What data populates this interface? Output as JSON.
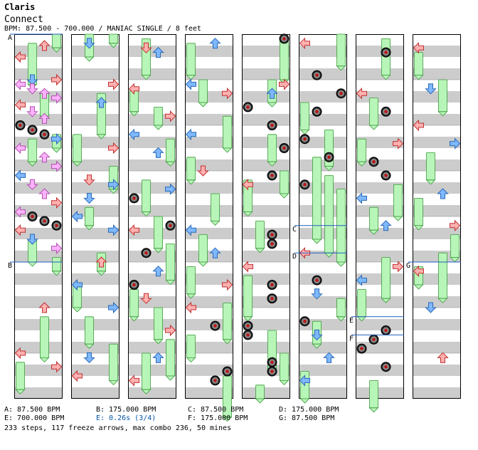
{
  "header": {
    "title": "Claris",
    "artist": "Connect",
    "meta": "BPM: 87.500 - 700.000 / MANIAC SINGLE / 8 feet"
  },
  "colors": {
    "band_gray": "#cccccc",
    "band_white": "#ffffff",
    "left_arrow": "#ffb0b0",
    "right_arrow": "#ffb0b0",
    "down_arrow": "#7fb8ff",
    "up_arrow": "#7fb8ff",
    "quarter_arrow": "#ffb0b0",
    "eighth_arrow": "#7fb8ff",
    "sixteenth_arrow": "#ffb3ff",
    "freeze": "#b8f5b8",
    "mine": "#c01010",
    "stop_text": "#0055aa",
    "bpm_line": "#1f5fbf"
  },
  "chart_data": {
    "type": "step-chart",
    "mode": "MANIAC SINGLE",
    "feet": 8,
    "bpm_range": [
      87.5,
      700.0
    ],
    "lanes": [
      "left",
      "down",
      "up",
      "right"
    ],
    "columns": 8,
    "measures_per_column": 8,
    "markers": [
      {
        "label": "A",
        "measure": 0.0
      },
      {
        "label": "B",
        "measure": 5.0
      },
      {
        "label": "C",
        "measure": 44.2
      },
      {
        "label": "D",
        "measure": 44.8
      },
      {
        "label": "E",
        "measure": 54.2
      },
      {
        "label": "F",
        "measure": 54.6
      },
      {
        "label": "G",
        "measure": 61.0
      }
    ],
    "notes": [
      {
        "m": 0.25,
        "lane": "up",
        "t": "q"
      },
      {
        "m": 0.5,
        "lane": "left",
        "t": "q"
      },
      {
        "m": 1.0,
        "lane": "down",
        "t": "e"
      },
      {
        "m": 1.0,
        "lane": "right",
        "t": "q"
      },
      {
        "m": 1.1,
        "lane": "left",
        "t": "s"
      },
      {
        "m": 1.2,
        "lane": "down",
        "t": "s"
      },
      {
        "m": 1.3,
        "lane": "up",
        "t": "s"
      },
      {
        "m": 1.4,
        "lane": "right",
        "t": "s"
      },
      {
        "m": 1.55,
        "lane": "left",
        "t": "q"
      },
      {
        "m": 1.7,
        "lane": "down",
        "t": "s"
      },
      {
        "m": 1.85,
        "lane": "up",
        "t": "s"
      },
      {
        "m": 2.0,
        "lane": "left",
        "t": "mine"
      },
      {
        "m": 2.1,
        "lane": "down",
        "t": "mine"
      },
      {
        "m": 2.2,
        "lane": "up",
        "t": "mine"
      },
      {
        "m": 2.3,
        "lane": "right",
        "t": "e"
      },
      {
        "m": 2.5,
        "lane": "left",
        "t": "s"
      },
      {
        "m": 2.7,
        "lane": "up",
        "t": "s"
      },
      {
        "m": 2.9,
        "lane": "right",
        "t": "s"
      },
      {
        "m": 3.1,
        "lane": "left",
        "t": "e"
      },
      {
        "m": 3.3,
        "lane": "down",
        "t": "s"
      },
      {
        "m": 3.5,
        "lane": "up",
        "t": "s"
      },
      {
        "m": 3.7,
        "lane": "right",
        "t": "q"
      },
      {
        "m": 3.9,
        "lane": "left",
        "t": "s"
      },
      {
        "m": 4.0,
        "lane": "down",
        "t": "mine"
      },
      {
        "m": 4.1,
        "lane": "up",
        "t": "mine"
      },
      {
        "m": 4.2,
        "lane": "right",
        "t": "mine"
      },
      {
        "m": 4.3,
        "lane": "left",
        "t": "q"
      },
      {
        "m": 4.5,
        "lane": "down",
        "t": "e"
      },
      {
        "m": 4.7,
        "lane": "right",
        "t": "s"
      },
      {
        "m": 6.0,
        "lane": "up",
        "t": "q"
      },
      {
        "m": 7.0,
        "lane": "left",
        "t": "q"
      },
      {
        "m": 7.3,
        "lane": "right",
        "t": "q"
      },
      {
        "m": 8.2,
        "lane": "down",
        "t": "e"
      },
      {
        "m": 9.1,
        "lane": "right",
        "t": "q"
      },
      {
        "m": 9.5,
        "lane": "up",
        "t": "e"
      },
      {
        "m": 10.5,
        "lane": "right",
        "t": "q"
      },
      {
        "m": 11.2,
        "lane": "down",
        "t": "q"
      },
      {
        "m": 11.3,
        "lane": "right",
        "t": "e"
      },
      {
        "m": 11.6,
        "lane": "down",
        "t": "e"
      },
      {
        "m": 12.0,
        "lane": "left",
        "t": "e"
      },
      {
        "m": 12.3,
        "lane": "right",
        "t": "e"
      },
      {
        "m": 13.0,
        "lane": "up",
        "t": "q"
      },
      {
        "m": 13.5,
        "lane": "left",
        "t": "e"
      },
      {
        "m": 14.0,
        "lane": "right",
        "t": "e"
      },
      {
        "m": 15.1,
        "lane": "down",
        "t": "e"
      },
      {
        "m": 15.5,
        "lane": "left",
        "t": "q"
      },
      {
        "m": 16.3,
        "lane": "down",
        "t": "q"
      },
      {
        "m": 16.4,
        "lane": "up",
        "t": "e"
      },
      {
        "m": 17.2,
        "lane": "left",
        "t": "q"
      },
      {
        "m": 17.8,
        "lane": "right",
        "t": "q"
      },
      {
        "m": 18.2,
        "lane": "left",
        "t": "e"
      },
      {
        "m": 18.6,
        "lane": "up",
        "t": "e"
      },
      {
        "m": 19.4,
        "lane": "right",
        "t": "e"
      },
      {
        "m": 19.6,
        "lane": "left",
        "t": "mine"
      },
      {
        "m": 20.2,
        "lane": "right",
        "t": "mine"
      },
      {
        "m": 20.3,
        "lane": "left",
        "t": "q"
      },
      {
        "m": 20.8,
        "lane": "down",
        "t": "mine"
      },
      {
        "m": 21.2,
        "lane": "up",
        "t": "e"
      },
      {
        "m": 21.5,
        "lane": "left",
        "t": "mine"
      },
      {
        "m": 21.8,
        "lane": "down",
        "t": "q"
      },
      {
        "m": 22.5,
        "lane": "right",
        "t": "q"
      },
      {
        "m": 23.1,
        "lane": "up",
        "t": "e"
      },
      {
        "m": 23.6,
        "lane": "left",
        "t": "q"
      },
      {
        "m": 24.2,
        "lane": "up",
        "t": "e"
      },
      {
        "m": 25.1,
        "lane": "left",
        "t": "e"
      },
      {
        "m": 25.3,
        "lane": "right",
        "t": "q"
      },
      {
        "m": 26.2,
        "lane": "left",
        "t": "e"
      },
      {
        "m": 27.0,
        "lane": "down",
        "t": "q"
      },
      {
        "m": 28.3,
        "lane": "left",
        "t": "e"
      },
      {
        "m": 28.8,
        "lane": "up",
        "t": "e"
      },
      {
        "m": 29.5,
        "lane": "right",
        "t": "q"
      },
      {
        "m": 30.0,
        "lane": "left",
        "t": "q"
      },
      {
        "m": 30.4,
        "lane": "up",
        "t": "mine"
      },
      {
        "m": 31.4,
        "lane": "right",
        "t": "mine"
      },
      {
        "m": 31.6,
        "lane": "up",
        "t": "mine"
      },
      {
        "m": 32.1,
        "lane": "right",
        "t": "mine"
      },
      {
        "m": 33.1,
        "lane": "right",
        "t": "q"
      },
      {
        "m": 33.3,
        "lane": "up",
        "t": "e"
      },
      {
        "m": 33.6,
        "lane": "left",
        "t": "mine"
      },
      {
        "m": 34.0,
        "lane": "up",
        "t": "mine"
      },
      {
        "m": 34.5,
        "lane": "right",
        "t": "mine"
      },
      {
        "m": 35.1,
        "lane": "up",
        "t": "mine"
      },
      {
        "m": 35.3,
        "lane": "left",
        "t": "q"
      },
      {
        "m": 36.4,
        "lane": "up",
        "t": "mine"
      },
      {
        "m": 36.6,
        "lane": "up",
        "t": "mine"
      },
      {
        "m": 37.1,
        "lane": "left",
        "t": "q"
      },
      {
        "m": 37.5,
        "lane": "up",
        "t": "mine"
      },
      {
        "m": 37.8,
        "lane": "up",
        "t": "mine"
      },
      {
        "m": 38.4,
        "lane": "left",
        "t": "mine"
      },
      {
        "m": 38.6,
        "lane": "left",
        "t": "mine"
      },
      {
        "m": 39.2,
        "lane": "up",
        "t": "mine"
      },
      {
        "m": 39.4,
        "lane": "up",
        "t": "mine"
      },
      {
        "m": 40.2,
        "lane": "left",
        "t": "q"
      },
      {
        "m": 40.9,
        "lane": "down",
        "t": "mine"
      },
      {
        "m": 41.3,
        "lane": "right",
        "t": "mine"
      },
      {
        "m": 41.7,
        "lane": "down",
        "t": "mine"
      },
      {
        "m": 42.3,
        "lane": "left",
        "t": "mine"
      },
      {
        "m": 42.7,
        "lane": "up",
        "t": "mine"
      },
      {
        "m": 43.3,
        "lane": "left",
        "t": "mine"
      },
      {
        "m": 44.8,
        "lane": "left",
        "t": "q"
      },
      {
        "m": 45.4,
        "lane": "down",
        "t": "mine"
      },
      {
        "m": 45.7,
        "lane": "down",
        "t": "e"
      },
      {
        "m": 46.3,
        "lane": "left",
        "t": "mine"
      },
      {
        "m": 46.6,
        "lane": "down",
        "t": "e"
      },
      {
        "m": 47.1,
        "lane": "up",
        "t": "e"
      },
      {
        "m": 47.6,
        "lane": "left",
        "t": "e"
      },
      {
        "m": 48.4,
        "lane": "up",
        "t": "mine"
      },
      {
        "m": 49.3,
        "lane": "left",
        "t": "q"
      },
      {
        "m": 49.7,
        "lane": "up",
        "t": "mine"
      },
      {
        "m": 50.4,
        "lane": "right",
        "t": "q"
      },
      {
        "m": 50.8,
        "lane": "down",
        "t": "mine"
      },
      {
        "m": 51.1,
        "lane": "up",
        "t": "mine"
      },
      {
        "m": 51.6,
        "lane": "left",
        "t": "e"
      },
      {
        "m": 52.2,
        "lane": "up",
        "t": "e"
      },
      {
        "m": 53.1,
        "lane": "right",
        "t": "q"
      },
      {
        "m": 53.4,
        "lane": "left",
        "t": "e"
      },
      {
        "m": 54.5,
        "lane": "up",
        "t": "mine"
      },
      {
        "m": 54.7,
        "lane": "down",
        "t": "mine"
      },
      {
        "m": 54.9,
        "lane": "left",
        "t": "mine"
      },
      {
        "m": 55.3,
        "lane": "up",
        "t": "mine"
      },
      {
        "m": 56.3,
        "lane": "left",
        "t": "q"
      },
      {
        "m": 57.2,
        "lane": "down",
        "t": "e"
      },
      {
        "m": 58.0,
        "lane": "left",
        "t": "q"
      },
      {
        "m": 58.4,
        "lane": "right",
        "t": "e"
      },
      {
        "m": 59.5,
        "lane": "up",
        "t": "e"
      },
      {
        "m": 60.2,
        "lane": "right",
        "t": "q"
      },
      {
        "m": 61.2,
        "lane": "left",
        "t": "q"
      },
      {
        "m": 62.0,
        "lane": "down",
        "t": "e"
      },
      {
        "m": 63.1,
        "lane": "up",
        "t": "q"
      }
    ],
    "freezes": [
      {
        "m": 0.2,
        "lane": "down",
        "len": 0.9
      },
      {
        "m": 0.0,
        "lane": "right",
        "len": 0.3
      },
      {
        "m": 1.3,
        "lane": "up",
        "len": 0.5
      },
      {
        "m": 2.3,
        "lane": "down",
        "len": 0.5
      },
      {
        "m": 2.2,
        "lane": "right",
        "len": 0.3
      },
      {
        "m": 4.5,
        "lane": "down",
        "len": 0.5
      },
      {
        "m": 4.9,
        "lane": "right",
        "len": 0.3
      },
      {
        "m": 6.2,
        "lane": "up",
        "len": 0.9
      },
      {
        "m": 7.2,
        "lane": "left",
        "len": 0.6
      },
      {
        "m": 8.0,
        "lane": "down",
        "len": 0.5
      },
      {
        "m": 8.0,
        "lane": "right",
        "len": 0.2
      },
      {
        "m": 9.3,
        "lane": "up",
        "len": 0.9
      },
      {
        "m": 10.2,
        "lane": "left",
        "len": 0.6
      },
      {
        "m": 10.9,
        "lane": "right",
        "len": 0.5
      },
      {
        "m": 11.8,
        "lane": "down",
        "len": 0.4
      },
      {
        "m": 12.8,
        "lane": "up",
        "len": 0.4
      },
      {
        "m": 13.5,
        "lane": "left",
        "len": 0.5
      },
      {
        "m": 14.2,
        "lane": "down",
        "len": 0.6
      },
      {
        "m": 14.8,
        "lane": "right",
        "len": 0.8
      },
      {
        "m": 16.1,
        "lane": "down",
        "len": 0.8
      },
      {
        "m": 17.2,
        "lane": "left",
        "len": 0.5
      },
      {
        "m": 17.6,
        "lane": "up",
        "len": 0.4
      },
      {
        "m": 18.3,
        "lane": "right",
        "len": 0.5
      },
      {
        "m": 19.2,
        "lane": "down",
        "len": 0.7
      },
      {
        "m": 20.0,
        "lane": "up",
        "len": 0.7
      },
      {
        "m": 20.6,
        "lane": "right",
        "len": 0.8
      },
      {
        "m": 21.6,
        "lane": "left",
        "len": 0.6
      },
      {
        "m": 22.0,
        "lane": "up",
        "len": 0.7
      },
      {
        "m": 22.7,
        "lane": "right",
        "len": 0.8
      },
      {
        "m": 23.0,
        "lane": "down",
        "len": 0.8
      },
      {
        "m": 24.2,
        "lane": "left",
        "len": 0.7
      },
      {
        "m": 25.0,
        "lane": "down",
        "len": 0.5
      },
      {
        "m": 25.8,
        "lane": "right",
        "len": 0.7
      },
      {
        "m": 26.7,
        "lane": "left",
        "len": 0.5
      },
      {
        "m": 27.5,
        "lane": "up",
        "len": 0.6
      },
      {
        "m": 28.4,
        "lane": "down",
        "len": 0.6
      },
      {
        "m": 29.1,
        "lane": "left",
        "len": 0.6
      },
      {
        "m": 29.9,
        "lane": "right",
        "len": 0.8
      },
      {
        "m": 30.6,
        "lane": "left",
        "len": 0.5
      },
      {
        "m": 31.5,
        "lane": "right",
        "len": 0.9
      },
      {
        "m": 32.1,
        "lane": "right",
        "len": 0.9
      },
      {
        "m": 33.0,
        "lane": "up",
        "len": 0.5
      },
      {
        "m": 34.2,
        "lane": "up",
        "len": 0.6
      },
      {
        "m": 35.0,
        "lane": "right",
        "len": 0.5
      },
      {
        "m": 35.2,
        "lane": "left",
        "len": 0.7
      },
      {
        "m": 36.1,
        "lane": "down",
        "len": 0.6
      },
      {
        "m": 37.3,
        "lane": "left",
        "len": 0.9
      },
      {
        "m": 38.5,
        "lane": "up",
        "len": 0.9
      },
      {
        "m": 39.0,
        "lane": "right",
        "len": 0.6
      },
      {
        "m": 39.7,
        "lane": "down",
        "len": 0.3
      },
      {
        "m": 40.0,
        "lane": "right",
        "len": 0.7
      },
      {
        "m": 41.5,
        "lane": "left",
        "len": 0.6
      },
      {
        "m": 42.1,
        "lane": "up",
        "len": 0.8
      },
      {
        "m": 42.7,
        "lane": "down",
        "len": 1.8
      },
      {
        "m": 43.1,
        "lane": "up",
        "len": 1.7
      },
      {
        "m": 43.4,
        "lane": "right",
        "len": 1.6
      },
      {
        "m": 45.8,
        "lane": "right",
        "len": 0.4
      },
      {
        "m": 46.3,
        "lane": "down",
        "len": 0.5
      },
      {
        "m": 47.4,
        "lane": "left",
        "len": 0.6
      },
      {
        "m": 48.1,
        "lane": "up",
        "len": 0.8
      },
      {
        "m": 49.4,
        "lane": "down",
        "len": 0.6
      },
      {
        "m": 50.3,
        "lane": "left",
        "len": 0.5
      },
      {
        "m": 51.3,
        "lane": "right",
        "len": 0.7
      },
      {
        "m": 51.8,
        "lane": "down",
        "len": 0.5
      },
      {
        "m": 52.9,
        "lane": "up",
        "len": 0.9
      },
      {
        "m": 53.6,
        "lane": "left",
        "len": 0.6
      },
      {
        "m": 55.6,
        "lane": "down",
        "len": 0.6
      },
      {
        "m": 56.4,
        "lane": "left",
        "len": 0.5
      },
      {
        "m": 57.0,
        "lane": "up",
        "len": 0.7
      },
      {
        "m": 58.6,
        "lane": "down",
        "len": 0.6
      },
      {
        "m": 59.6,
        "lane": "left",
        "len": 0.6
      },
      {
        "m": 60.4,
        "lane": "right",
        "len": 0.5
      },
      {
        "m": 60.8,
        "lane": "up",
        "len": 1.0
      },
      {
        "m": 61.1,
        "lane": "left",
        "len": 0.4
      }
    ]
  },
  "footer": {
    "legend": [
      {
        "text": "A: 87.500 BPM",
        "stop": false
      },
      {
        "text": "B: 175.000 BPM",
        "stop": false
      },
      {
        "text": "C: 87.500 BPM",
        "stop": false
      },
      {
        "text": "D: 175.000 BPM",
        "stop": false
      },
      {
        "text": "E: 700.000 BPM",
        "stop": false
      },
      {
        "text": "E: 0.26s (3/4)",
        "stop": true
      },
      {
        "text": "F: 175.000 BPM",
        "stop": false
      },
      {
        "text": "G: 87.500 BPM",
        "stop": false
      }
    ],
    "summary": "233 steps, 117 freeze arrows, max combo 236, 50 mines"
  }
}
